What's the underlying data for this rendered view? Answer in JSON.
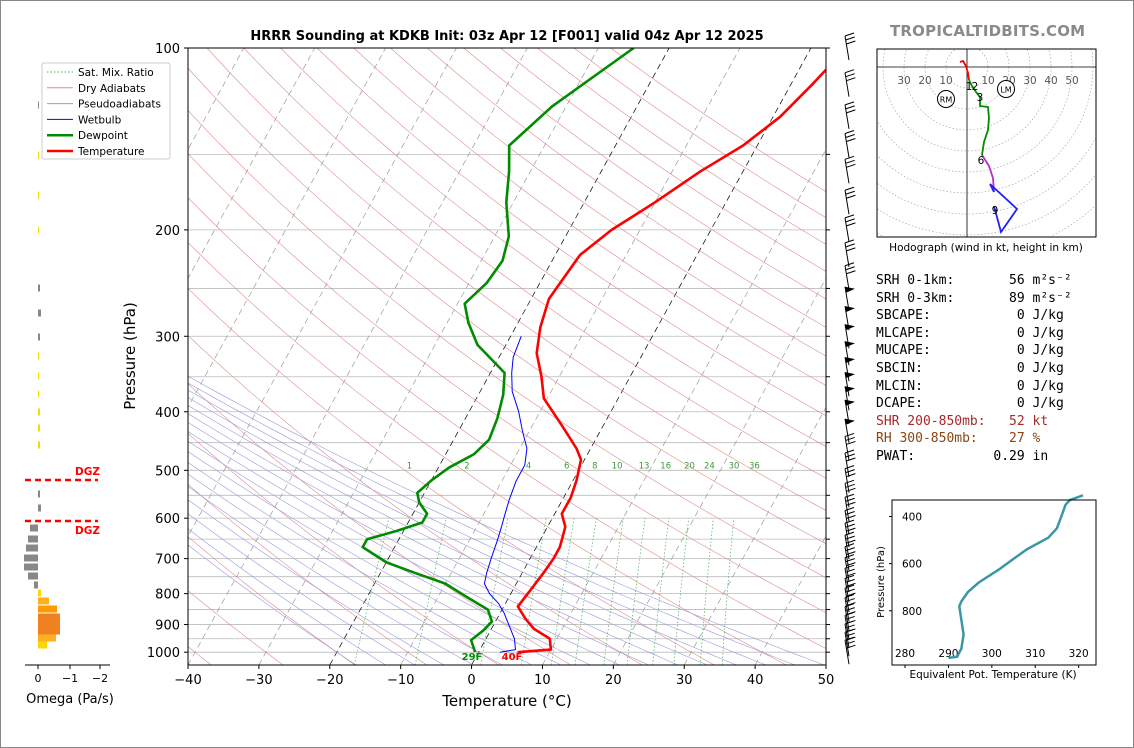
{
  "chart_data": [
    {
      "type": "line",
      "title": "HRRR Sounding at KDKB Init: 03z Apr 12 [F001] valid 04z Apr 12 2025",
      "xlabel": "Temperature (°C)",
      "ylabel": "Pressure (hPa)",
      "xlim": [
        -40,
        50
      ],
      "ylim": [
        1050,
        100
      ],
      "yscale": "log",
      "xticks": [
        "−40",
        "−30",
        "−20",
        "−10",
        "0",
        "10",
        "20",
        "30",
        "40",
        "50"
      ],
      "yticks": [
        "100",
        "200",
        "300",
        "400",
        "500",
        "600",
        "700",
        "800",
        "900",
        "1000"
      ],
      "legend": {
        "position": "top-left",
        "entries": [
          "Sat. Mix. Ratio",
          "Dry Adiabats",
          "Pseudoadiabats",
          "Wetbulb",
          "Dewpoint",
          "Temperature"
        ]
      },
      "mixing_ratio_labels": [
        "1",
        "2",
        "4",
        "6",
        "8",
        "10",
        "13",
        "16",
        "20",
        "24",
        "30",
        "36"
      ],
      "surface_labels": {
        "dewpoint": "29F",
        "temperature": "40F"
      },
      "series": [
        {
          "name": "Temperature",
          "color": "#ff0000",
          "points": [
            [
              5.5,
              1000
            ],
            [
              10,
              990
            ],
            [
              9,
              950
            ],
            [
              6,
              915
            ],
            [
              4,
              880
            ],
            [
              2,
              840
            ],
            [
              2.5,
              790
            ],
            [
              3,
              740
            ],
            [
              3.3,
              700
            ],
            [
              3.3,
              670
            ],
            [
              3,
              650
            ],
            [
              2.5,
              620
            ],
            [
              1,
              590
            ],
            [
              1,
              555
            ],
            [
              0.5,
              520
            ],
            [
              -0.5,
              480
            ],
            [
              -2,
              460
            ],
            [
              -6,
              420
            ],
            [
              -10.5,
              380
            ],
            [
              -12.5,
              350
            ],
            [
              -15,
              320
            ],
            [
              -16.5,
              290
            ],
            [
              -17.5,
              260
            ],
            [
              -16.5,
              220
            ],
            [
              -14,
              200
            ],
            [
              -10,
              180
            ],
            [
              -6,
              160
            ],
            [
              -2,
              145
            ],
            [
              1,
              130
            ],
            [
              3,
              115
            ],
            [
              5,
              100
            ]
          ]
        },
        {
          "name": "Dewpoint",
          "color": "#008c00",
          "points": [
            [
              -0.5,
              1000
            ],
            [
              -2,
              955
            ],
            [
              -1,
              920
            ],
            [
              -0.5,
              890
            ],
            [
              -2,
              850
            ],
            [
              -6,
              810
            ],
            [
              -10,
              770
            ],
            [
              -15,
              740
            ],
            [
              -20,
              710
            ],
            [
              -24.5,
              670
            ],
            [
              -24.5,
              650
            ],
            [
              -21,
              630
            ],
            [
              -18,
              610
            ],
            [
              -18,
              590
            ],
            [
              -20,
              565
            ],
            [
              -21,
              545
            ],
            [
              -20,
              520
            ],
            [
              -18.5,
              495
            ],
            [
              -16,
              470
            ],
            [
              -15,
              445
            ],
            [
              -15.5,
              410
            ],
            [
              -16.5,
              375
            ],
            [
              -18,
              345
            ],
            [
              -24,
              310
            ],
            [
              -27,
              285
            ],
            [
              -29,
              265
            ],
            [
              -27.5,
              245
            ],
            [
              -27,
              225
            ],
            [
              -28,
              205
            ],
            [
              -31,
              180
            ],
            [
              -33,
              160
            ],
            [
              -35,
              145
            ],
            [
              -32,
              125
            ],
            [
              -28,
              110
            ],
            [
              -25,
              100
            ]
          ]
        },
        {
          "name": "Wetbulb",
          "color": "#0000ff",
          "points": [
            [
              3,
              1000
            ],
            [
              5,
              990
            ],
            [
              4,
              950
            ],
            [
              2.5,
              910
            ],
            [
              0.5,
              860
            ],
            [
              -1,
              830
            ],
            [
              -3,
              800
            ],
            [
              -4.5,
              770
            ],
            [
              -5,
              740
            ],
            [
              -5.5,
              700
            ],
            [
              -6,
              655
            ],
            [
              -6.5,
              620
            ],
            [
              -7,
              590
            ],
            [
              -7.5,
              560
            ],
            [
              -8,
              520
            ],
            [
              -8,
              490
            ],
            [
              -9,
              460
            ],
            [
              -11,
              430
            ],
            [
              -13,
              400
            ],
            [
              -15.5,
              370
            ],
            [
              -17,
              345
            ],
            [
              -18,
              325
            ],
            [
              -18.5,
              300
            ]
          ]
        }
      ]
    },
    {
      "type": "line",
      "title": "Hodograph (wind in kt, height in km)",
      "xticks": [
        "30",
        "20",
        "10",
        "10",
        "20",
        "30",
        "40",
        "50"
      ],
      "height_labels": [
        "1",
        "2",
        "3",
        "6",
        "9"
      ],
      "markers": [
        "RM",
        "LM"
      ]
    },
    {
      "type": "bar",
      "xlabel": "Omega (Pa/s)",
      "xticks": [
        "0",
        "−1",
        "−2"
      ],
      "annotations": [
        "DGZ",
        "DGZ"
      ]
    },
    {
      "type": "line",
      "xlabel": "Equivalent Pot. Temperature (K)",
      "ylabel": "Pressure (hPa)",
      "xticks": [
        "280",
        "290",
        "300",
        "310",
        "320"
      ],
      "yticks": [
        "400",
        "600",
        "800"
      ],
      "series": [
        {
          "color": "#3a97a8",
          "points": [
            [
              290,
              1000
            ],
            [
              292,
              995
            ],
            [
              293,
              960
            ],
            [
              293.5,
              900
            ],
            [
              293,
              840
            ],
            [
              292.5,
              780
            ],
            [
              293,
              760
            ],
            [
              294.5,
              720
            ],
            [
              297,
              680
            ],
            [
              302,
              620
            ],
            [
              305,
              580
            ],
            [
              308,
              540
            ],
            [
              313,
              490
            ],
            [
              315,
              450
            ],
            [
              316,
              400
            ],
            [
              317,
              350
            ],
            [
              318,
              330
            ],
            [
              321,
              310
            ]
          ]
        }
      ]
    }
  ],
  "brand": "TROPICALTIDBITS.COM",
  "stats": {
    "srh1": "SRH 0-1km:       56 m²s⁻²",
    "srh3": "SRH 0-3km:       89 m²s⁻²",
    "sbcape": "SBCAPE:           0 J/kg",
    "mlcape": "MLCAPE:           0 J/kg",
    "mucape": "MUCAPE:           0 J/kg",
    "sbcin": "SBCIN:            0 J/kg",
    "mlcin": "MLCIN:            0 J/kg",
    "dcape": "DCAPE:            0 J/kg",
    "shr": "SHR 200-850mb:   52 kt",
    "rh": "RH 300-850mb:    27 %",
    "pwat": "PWAT:          0.29 in"
  },
  "colors": {
    "temperature": "#ff0000",
    "dewpoint": "#008c00",
    "wetbulb": "#0000ff",
    "shr": "#a52a2a",
    "rh": "#8b4513",
    "dgz": "#ff0000",
    "theta": "#3a97a8"
  }
}
